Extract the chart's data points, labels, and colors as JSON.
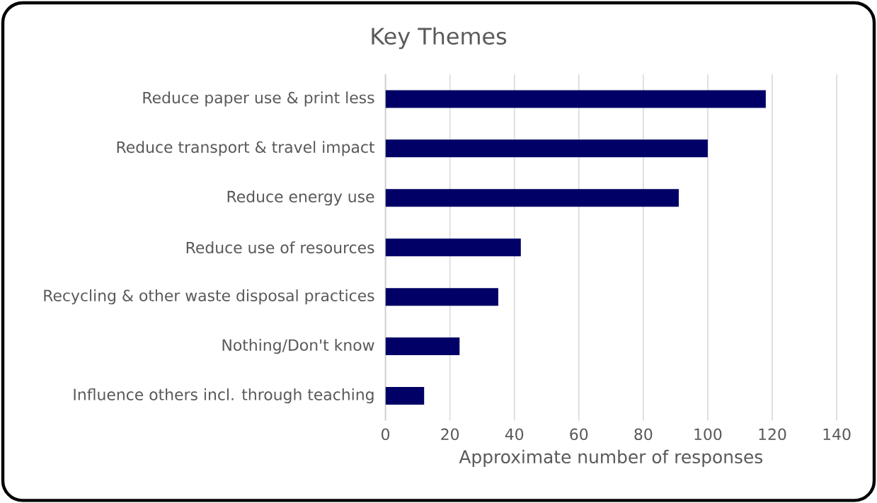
{
  "chart_data": {
    "type": "bar",
    "orientation": "horizontal",
    "title": "Key Themes",
    "xlabel": "Approximate number of responses",
    "categories": [
      "Reduce paper use & print less",
      "Reduce transport & travel impact",
      "Reduce energy use",
      "Reduce use of resources",
      "Recycling & other waste disposal practices",
      "Nothing/Don't know",
      "Influence others incl. through teaching"
    ],
    "values": [
      118,
      100,
      91,
      42,
      35,
      23,
      12
    ],
    "color": "#000066",
    "xlim": [
      0,
      140
    ],
    "xticks": [
      0,
      20,
      40,
      60,
      80,
      100,
      120,
      140
    ],
    "grid": "x"
  }
}
